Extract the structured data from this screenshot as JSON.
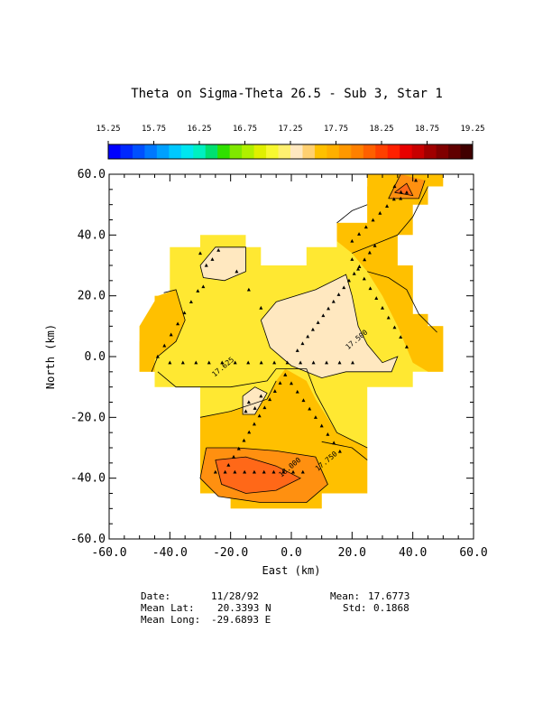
{
  "chart_data": {
    "type": "heatmap",
    "title": "Theta on Sigma-Theta 26.5 - Sub 3, Star 1",
    "xlabel": "East (km)",
    "ylabel": "North (km)",
    "xlim": [
      -60,
      60
    ],
    "ylim": [
      -60,
      60
    ],
    "x_ticks": [
      "-60.0",
      "-40.0",
      "-20.0",
      "0.0",
      "20.0",
      "40.0",
      "60.0"
    ],
    "y_ticks": [
      "-60.0",
      "-40.0",
      "-20.0",
      "0.0",
      "20.0",
      "40.0",
      "60.0"
    ],
    "x_tick_values": [
      -60,
      -40,
      -20,
      0,
      20,
      40,
      60
    ],
    "y_tick_values": [
      -60,
      -40,
      -20,
      0,
      20,
      40,
      60
    ],
    "colorbar": {
      "labels": [
        "15.25",
        "15.75",
        "16.25",
        "16.75",
        "17.25",
        "17.75",
        "18.25",
        "18.75",
        "19.25"
      ],
      "min": 15.25,
      "max": 19.25,
      "colors": [
        "#0000ff",
        "#0028ff",
        "#0050ff",
        "#0078ff",
        "#00a0ff",
        "#00c8ff",
        "#00e6f0",
        "#00f0c0",
        "#00e070",
        "#30e000",
        "#80e800",
        "#b0f000",
        "#e0f000",
        "#f8f830",
        "#fff070",
        "#ffe8c0",
        "#ffd070",
        "#ffc000",
        "#ffb000",
        "#ff9800",
        "#ff8000",
        "#ff6000",
        "#ff4000",
        "#ff2000",
        "#e80000",
        "#c80000",
        "#a00000",
        "#800000",
        "#600000",
        "#400000"
      ]
    },
    "contour_labels": [
      {
        "text": "17.625",
        "x": -22,
        "y": -4
      },
      {
        "text": "17.500",
        "x": 22,
        "y": 5
      },
      {
        "text": "17.750",
        "x": 12,
        "y": -35
      },
      {
        "text": "18.000",
        "x": 0,
        "y": -37
      }
    ],
    "field_colors": {
      "yellow": "#ffe832",
      "pale": "#ffe8c0",
      "orange": "#ffc000",
      "deep_orange": "#ff9010",
      "red_orange": "#ff6818"
    }
  },
  "footer": {
    "date_label": "Date:",
    "date_value": "11/28/92",
    "lat_label": "Mean Lat:",
    "lat_value": "20.3393 N",
    "long_label": "Mean Long:",
    "long_value": "-29.6893 E",
    "mean_label": "Mean:",
    "mean_value": "17.6773",
    "std_label": "Std:",
    "std_value": "0.1868"
  }
}
